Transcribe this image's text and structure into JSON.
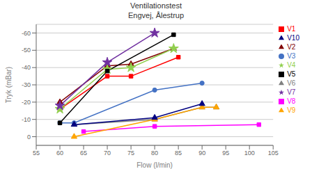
{
  "chart_data": {
    "type": "line",
    "title": "Ventilationstest\nEngvej, Ålestrup",
    "x_label": "Flow (l/min)",
    "y_label": "Tryk (mBar)",
    "xlim": [
      55,
      105
    ],
    "ylim": [
      5,
      -65
    ],
    "xticks": [
      55,
      60,
      65,
      70,
      75,
      80,
      85,
      90,
      95,
      100,
      105
    ],
    "yticks": [
      -60,
      -50,
      -40,
      -30,
      -20,
      -10,
      0
    ],
    "grid": "y",
    "legend": "right",
    "series": [
      {
        "name": "V1",
        "color": "#FF0000",
        "marker": "square",
        "x": [
          60,
          70,
          75,
          85
        ],
        "values": [
          -16,
          -35,
          -35,
          -46
        ]
      },
      {
        "name": "V2",
        "color": "#800000",
        "marker": "triangle",
        "x": [
          60,
          70,
          75,
          84
        ],
        "values": [
          -20,
          -41,
          -42,
          -51
        ]
      },
      {
        "name": "V3",
        "color": "#4472C4",
        "marker": "circle",
        "x": [
          60,
          63,
          80,
          90
        ],
        "values": [
          -8,
          -8,
          -27,
          -31
        ]
      },
      {
        "name": "V4",
        "color": "#92D050",
        "marker": "star",
        "x": [
          60,
          70,
          75,
          84
        ],
        "values": [
          -16,
          -39,
          -40,
          -51
        ]
      },
      {
        "name": "V5",
        "color": "#000000",
        "marker": "square",
        "x": [
          60,
          70,
          84
        ],
        "values": [
          -8,
          -38,
          -59
        ]
      },
      {
        "name": "V6",
        "color": "#808080",
        "marker": "triangle",
        "x": [
          63,
          80,
          90,
          93
        ],
        "values": [
          -7,
          -10,
          -17,
          -17
        ]
      },
      {
        "name": "V7",
        "color": "#7030A0",
        "marker": "star",
        "x": [
          60,
          70,
          80
        ],
        "values": [
          -18,
          -43,
          -60
        ]
      },
      {
        "name": "V8",
        "color": "#FF00FF",
        "marker": "square",
        "x": [
          65,
          80,
          102
        ],
        "values": [
          -3,
          -6,
          -7
        ]
      },
      {
        "name": "V9",
        "color": "#FFA500",
        "marker": "triangle",
        "x": [
          63,
          80,
          90,
          93
        ],
        "values": [
          0,
          -10,
          -17,
          -17
        ]
      },
      {
        "name": "V10",
        "color": "#000080",
        "marker": "triangle",
        "x": [
          63,
          80,
          90
        ],
        "values": [
          -7,
          -11,
          -19
        ]
      }
    ]
  }
}
